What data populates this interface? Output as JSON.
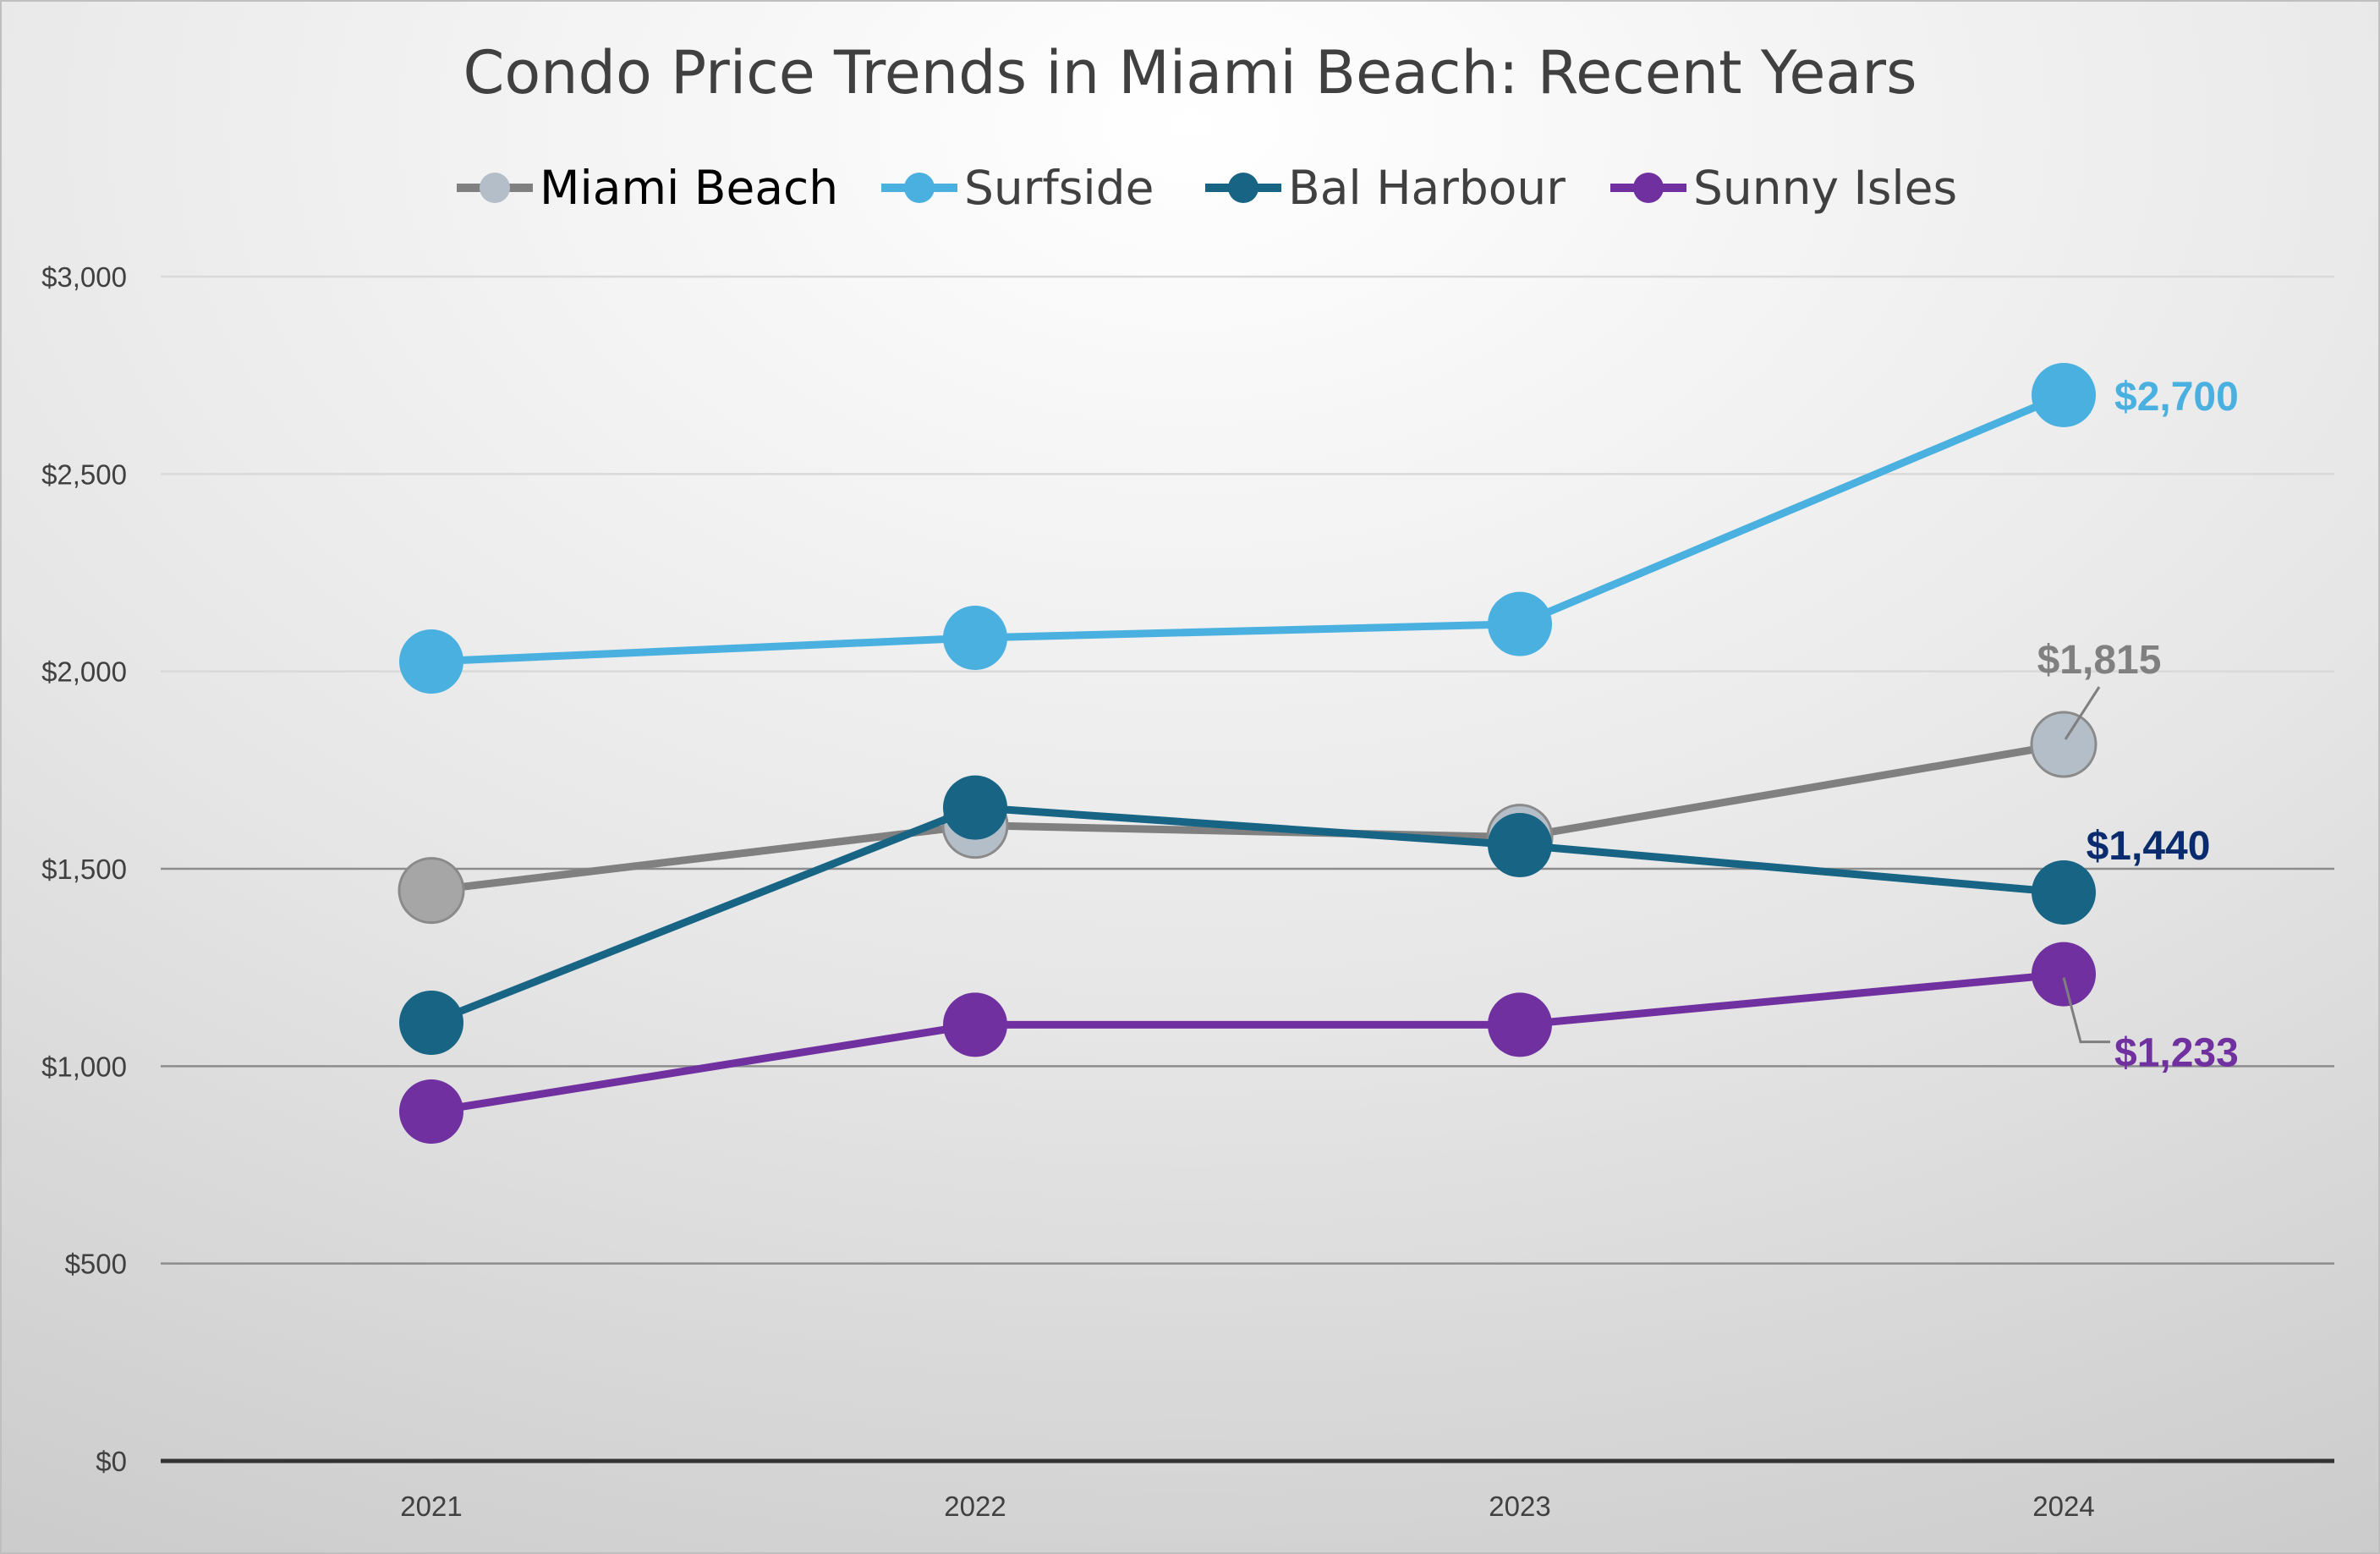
{
  "chart_data": {
    "type": "line",
    "title": "Condo Price Trends in Miami Beach: Recent Years",
    "xlabel": "",
    "ylabel": "",
    "categories": [
      "2021",
      "2022",
      "2023",
      "2024"
    ],
    "ylim": [
      0,
      3000
    ],
    "yticks": [
      0,
      500,
      1000,
      1500,
      2000,
      2500,
      3000
    ],
    "ytick_labels": [
      "$0",
      "$500",
      "$1,000",
      "$1,500",
      "$2,000",
      "$2,500",
      "$3,000"
    ],
    "grid": true,
    "legend_position": "top",
    "series": [
      {
        "name": "Miami Beach",
        "values": [
          1445,
          1610,
          1580,
          1815
        ],
        "line_color": "#808080",
        "marker_color": "#b4bec8",
        "first_marker_color": "#a6a6a6"
      },
      {
        "name": "Surfside",
        "values": [
          2025,
          2085,
          2120,
          2700
        ],
        "line_color": "#4ab0e0",
        "marker_color": "#4ab0e0"
      },
      {
        "name": "Bal Harbour",
        "values": [
          1110,
          1655,
          1560,
          1440
        ],
        "line_color": "#176484",
        "marker_color": "#176484"
      },
      {
        "name": "Sunny Isles",
        "values": [
          885,
          1105,
          1105,
          1233
        ],
        "line_color": "#7030a0",
        "marker_color": "#7030a0"
      }
    ],
    "annotations": [
      {
        "series": "Surfside",
        "category": "2024",
        "text": "$2,700",
        "color": "#4ab0e0",
        "leader": false
      },
      {
        "series": "Miami Beach",
        "category": "2024",
        "text": "$1,815",
        "color": "#808080",
        "leader": true
      },
      {
        "series": "Bal Harbour",
        "category": "2024",
        "text": "$1,440",
        "color": "#0a2c6e",
        "leader": false
      },
      {
        "series": "Sunny Isles",
        "category": "2024",
        "text": "$1,233",
        "color": "#7030a0",
        "leader": true
      }
    ]
  }
}
